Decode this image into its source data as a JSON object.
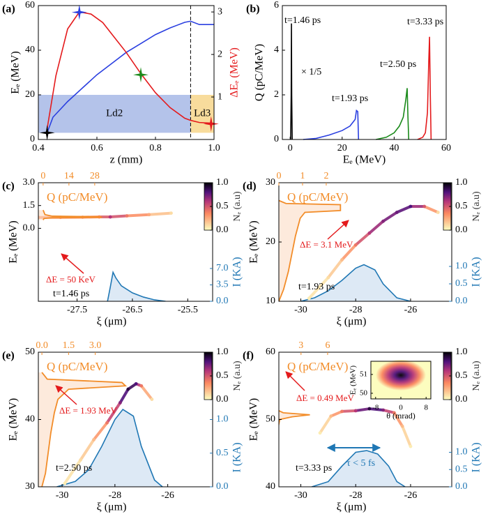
{
  "chart_data": [
    {
      "type": "line",
      "panel": "(a)",
      "xlabel": "z (mm)",
      "ylabel": "Eₑ (MeV)",
      "y2label": "ΔEₑ (MeV)",
      "xlim": [
        0.4,
        1.0
      ],
      "xticks": [
        0.4,
        0.6,
        0.8,
        {
          "value": 1,
          "label": "1.0"
        }
      ],
      "ylim": [
        0,
        60
      ],
      "yticks": [
        0,
        20,
        40,
        60
      ],
      "y2lim": [
        0,
        3.15
      ],
      "y2ticks": [
        1,
        2,
        3
      ],
      "y2color": "#e41a1c",
      "regions": [
        {
          "label": "Ld2",
          "x": [
            0.4,
            0.92
          ],
          "y": [
            3,
            20
          ],
          "color": "#b4c3ea"
        },
        {
          "label": "Ld3",
          "x": [
            0.92,
            1.0
          ],
          "y": [
            3,
            20
          ],
          "color": "#f8dc9c"
        }
      ],
      "vline": 0.92,
      "series": [
        {
          "color": "#2a3fe0",
          "x": [
            0.43,
            0.45,
            0.5,
            0.55,
            0.6,
            0.65,
            0.7,
            0.75,
            0.8,
            0.85,
            0.9,
            0.92,
            0.95,
            1.0
          ],
          "values": [
            3,
            10,
            17,
            23,
            29,
            34,
            39,
            43,
            47,
            50,
            52.5,
            53,
            51.5,
            51.5
          ]
        },
        {
          "color": "#e41a1c",
          "axis": "y2",
          "x": [
            0.43,
            0.46,
            0.5,
            0.54,
            0.58,
            0.62,
            0.66,
            0.7,
            0.75,
            0.8,
            0.85,
            0.9,
            0.92,
            0.95,
            1.0
          ],
          "values": [
            0.25,
            1.5,
            2.6,
            3.0,
            2.95,
            2.75,
            2.4,
            2.05,
            1.55,
            1.1,
            0.75,
            0.5,
            0.45,
            0.4,
            0.38
          ]
        }
      ],
      "markers": {
        "x": [
          0.43,
          0.54,
          0.75,
          0.99
        ],
        "values": [
          3,
          57,
          29,
          7
        ],
        "colors": [
          "#000000",
          "#2a3fe0",
          "#1a8a1a",
          "#e41a1c"
        ]
      }
    },
    {
      "type": "line",
      "panel": "(b)",
      "xlabel": "Eₑ (MeV)",
      "ylabel": "Q (pC/MeV)",
      "xlim": [
        -3,
        60
      ],
      "xticks": [
        0,
        20,
        40,
        60
      ],
      "ylim": [
        0,
        6
      ],
      "yticks": [
        0,
        2,
        4,
        6
      ],
      "series": [
        {
          "color": "#000000",
          "x": [
            0.2,
            0.4,
            0.5,
            0.6,
            0.8
          ],
          "values": [
            0,
            2,
            5.2,
            2,
            0
          ]
        },
        {
          "color": "#2a3fe0",
          "x": [
            5,
            10,
            15,
            20,
            23,
            25,
            25.5,
            26,
            26.3
          ],
          "values": [
            0,
            0.05,
            0.2,
            0.4,
            0.6,
            0.9,
            1.3,
            1.25,
            0
          ]
        },
        {
          "color": "#1a8a1a",
          "x": [
            33,
            37,
            40,
            42,
            43.5,
            44.5,
            45,
            45.3,
            45.6
          ],
          "values": [
            0,
            0.1,
            0.3,
            0.6,
            1.0,
            1.8,
            2.3,
            1.0,
            0
          ]
        },
        {
          "color": "#e41a1c",
          "x": [
            49,
            51,
            52,
            52.8,
            53.3,
            53.6,
            53.9,
            54.2
          ],
          "values": [
            0,
            0.1,
            0.3,
            1.2,
            3.5,
            4.6,
            2,
            0
          ]
        }
      ],
      "annotations": [
        "t=1.46 ps",
        "× 1/5",
        "t=1.93 ps",
        "t=2.50 ps",
        "t=3.33 ps"
      ]
    },
    {
      "type": "phasespace",
      "panel": "(c)",
      "xlabel": "ξ (μm)",
      "ylabel": "Eₑ (MeV)",
      "qlabel": "Q (pC/MeV)",
      "ilabel": "I (KA)",
      "clabel": "Nₑ (a.u)",
      "xlim": [
        -28.2,
        -25.05
      ],
      "xticks": [
        -27.5,
        -26.5,
        -25.5
      ],
      "ylim": [
        -4.8,
        3
      ],
      "yticks": [
        {
          "value": 0,
          "label": "0.0"
        },
        1.5,
        {
          "value": 3,
          "label": "3.0"
        }
      ],
      "y2lim": [
        0,
        25.3
      ],
      "y2ticks": [
        {
          "value": 0,
          "label": "0.0"
        },
        3.5,
        {
          "value": 7,
          "label": "7.0"
        }
      ],
      "qlim": [
        -2.6,
        92
      ],
      "qticks": [
        0,
        14,
        28
      ],
      "clim": [
        0,
        1
      ],
      "cticks": [
        {
          "value": 0,
          "label": "0.0"
        },
        0.5,
        {
          "value": 1,
          "label": "1.0"
        }
      ],
      "phase": {
        "x": [
          -28.2,
          -27.8,
          -27.4,
          -27.1,
          -26.9,
          -26.6,
          -26.2,
          -25.8
        ],
        "values": [
          0.72,
          0.72,
          0.73,
          0.75,
          0.75,
          0.82,
          0.9,
          1.0
        ],
        "density": [
          0.3,
          0.3,
          0.3,
          0.35,
          0.6,
          0.4,
          0.25,
          0.1
        ]
      },
      "spectrum": {
        "energy": [
          0.55,
          0.65,
          0.7,
          0.73,
          0.76,
          0.8,
          0.9,
          1.2
        ],
        "values": [
          0,
          0.5,
          5,
          32,
          30,
          5,
          1,
          0
        ]
      },
      "current": {
        "x": [
          -26.95,
          -26.9,
          -26.85,
          -26.8,
          -26.7,
          -26.5,
          -26.3,
          -26.1,
          -25.9
        ],
        "values": [
          0,
          3,
          6.2,
          5,
          3.3,
          1.8,
          0.9,
          0.3,
          0
        ]
      },
      "annotations": [
        "ΔE = 50 KeV",
        "t=1.46 ps"
      ]
    },
    {
      "type": "phasespace",
      "panel": "(d)",
      "xlabel": "ξ (μm)",
      "ylabel": "Eₑ (MeV)",
      "qlabel": "Q (pC/MeV)",
      "ilabel": "I (KA)",
      "clabel": "Nₑ (a.u)",
      "xlim": [
        -30.8,
        -24.5
      ],
      "xticks": [
        -30,
        -28,
        -26
      ],
      "ylim": [
        10,
        30
      ],
      "yticks": [
        10,
        20,
        30
      ],
      "y2lim": [
        0,
        3.4
      ],
      "y2ticks": [
        {
          "value": 0,
          "label": "0.0"
        },
        0.5,
        {
          "value": 1,
          "label": "1.0"
        }
      ],
      "qlim": [
        0,
        7.3
      ],
      "qticks": [
        0,
        1,
        2
      ],
      "clim": [
        0,
        1
      ],
      "cticks": [
        {
          "value": 0,
          "label": "0.0"
        },
        0.5,
        {
          "value": 1,
          "label": "1.0"
        }
      ],
      "phase": {
        "x": [
          -29.7,
          -29.0,
          -28.5,
          -28.0,
          -27.5,
          -27.0,
          -26.5,
          -26.0,
          -25.5,
          -25.0
        ],
        "values": [
          10.5,
          14,
          17,
          19.5,
          21.5,
          23.5,
          25,
          26,
          26,
          25
        ],
        "density": [
          0.05,
          0.1,
          0.2,
          0.4,
          0.6,
          0.7,
          0.75,
          0.8,
          0.5,
          0.1
        ]
      },
      "spectrum": {
        "energy": [
          10,
          12,
          15,
          18,
          21,
          24,
          25,
          25.3,
          25.5,
          26.3,
          26.5,
          27
        ],
        "values": [
          0,
          0.2,
          0.4,
          0.55,
          0.7,
          0.9,
          1.1,
          2.6,
          2.6,
          2.6,
          0.3,
          0
        ]
      },
      "current": {
        "x": [
          -30,
          -29.5,
          -29,
          -28.5,
          -28,
          -27.7,
          -27.3,
          -27,
          -26.5,
          -26
        ],
        "values": [
          0,
          0.1,
          0.3,
          0.6,
          0.95,
          1.05,
          0.9,
          0.5,
          0.1,
          0
        ]
      },
      "annotations": [
        "ΔE = 3.1 MeV",
        "t=1.93 ps"
      ]
    },
    {
      "type": "phasespace",
      "panel": "(e)",
      "xlabel": "ξ (μm)",
      "ylabel": "Eₑ (MeV)",
      "qlabel": "Q (pC/MeV)",
      "ilabel": "I (KA)",
      "clabel": "Nₑ (a.u)",
      "xlim": [
        -30.9,
        -24.3
      ],
      "xticks": [
        -30,
        -28,
        -26
      ],
      "ylim": [
        30,
        50
      ],
      "yticks": [
        30,
        40,
        50
      ],
      "y2lim": [
        0,
        2.0
      ],
      "y2ticks": [
        {
          "value": 0,
          "label": "0.0"
        },
        0.5,
        {
          "value": 1,
          "label": "1.0"
        }
      ],
      "qlim": [
        -0.2,
        9.6
      ],
      "qticks": [
        {
          "value": 0,
          "label": "0.0"
        },
        1.5,
        {
          "value": 3,
          "label": "3.0"
        }
      ],
      "clim": [
        0,
        1
      ],
      "cticks": [
        {
          "value": 0,
          "label": "0.0"
        },
        0.5,
        {
          "value": 1,
          "label": "1.0"
        }
      ],
      "phase": {
        "x": [
          -29.9,
          -29.3,
          -28.8,
          -28.3,
          -27.8,
          -27.5,
          -27.2,
          -27.0,
          -26.6
        ],
        "values": [
          30.5,
          34,
          37,
          39.5,
          42.5,
          44.5,
          45.3,
          45,
          43
        ],
        "density": [
          0.05,
          0.1,
          0.2,
          0.4,
          0.7,
          0.9,
          0.8,
          0.4,
          0.1
        ]
      },
      "spectrum": {
        "energy": [
          30,
          32,
          35,
          38,
          41,
          43,
          44.5,
          45,
          45.5,
          46,
          47
        ],
        "values": [
          0,
          0.2,
          0.35,
          0.5,
          0.7,
          0.9,
          1.5,
          4.7,
          4.5,
          0.3,
          0
        ]
      },
      "current": {
        "x": [
          -30.2,
          -29.5,
          -29,
          -28.5,
          -28,
          -27.7,
          -27.3,
          -27,
          -26.5,
          -26.2
        ],
        "values": [
          0,
          0.08,
          0.25,
          0.6,
          1.0,
          1.15,
          1.05,
          0.6,
          0.1,
          0
        ]
      },
      "annotations": [
        "ΔE = 1.93 MeV",
        "t=2.50 ps"
      ]
    },
    {
      "type": "phasespace",
      "panel": "(f)",
      "xlabel": "ξ (μm)",
      "ylabel": "Eₑ (MeV)",
      "qlabel": "Q (pC/MeV)",
      "ilabel": "I (KA)",
      "clabel": "Nₑ (a.u)",
      "xlim": [
        -30.8,
        -24.5
      ],
      "xticks": [
        -30,
        -28,
        -26
      ],
      "ylim": [
        40,
        60
      ],
      "yticks": [
        40,
        50,
        60
      ],
      "y2lim": [
        0,
        3.9
      ],
      "y2ticks": [
        {
          "value": 0,
          "label": "0.0"
        },
        0.5,
        {
          "value": 1,
          "label": "1.0"
        }
      ],
      "qlim": [
        0.5,
        20
      ],
      "qticks": [
        3,
        6
      ],
      "clim": [
        0,
        1
      ],
      "cticks": [
        {
          "value": 0,
          "label": "0.0"
        },
        0.5,
        {
          "value": 1,
          "label": "1.0"
        }
      ],
      "phase": {
        "x": [
          -29.3,
          -28.9,
          -28.5,
          -28,
          -27.5,
          -27,
          -26.6,
          -26.3,
          -26
        ],
        "values": [
          48,
          50.5,
          51.2,
          51.3,
          51.6,
          51.4,
          51,
          49,
          46
        ],
        "density": [
          0.05,
          0.2,
          0.4,
          0.6,
          0.9,
          0.7,
          0.4,
          0.2,
          0.05
        ]
      },
      "spectrum": {
        "energy": [
          40,
          44,
          48,
          50,
          50.4,
          50.7,
          51,
          51.5,
          52
        ],
        "values": [
          0,
          0.1,
          0.3,
          0.6,
          2,
          4,
          1,
          0.2,
          0
        ]
      },
      "current": {
        "x": [
          -29.6,
          -29,
          -28.5,
          -28,
          -27.6,
          -27.2,
          -26.8,
          -26.5,
          -26.2
        ],
        "values": [
          0,
          0.15,
          0.6,
          1.0,
          1.05,
          0.95,
          0.6,
          0.15,
          0
        ]
      },
      "annotations": [
        "ΔE = 0.49 MeV",
        "t=3.33 ps",
        "τ < 5 fs"
      ],
      "inset": {
        "xlabel": "θ (mrad)",
        "ylabel": "Eₑ (MeV)",
        "xlim": [
          -9.5,
          9.5
        ],
        "xticks": [
          -8,
          0,
          8
        ],
        "ylim": [
          49.7,
          51.7
        ],
        "yticks": [
          50,
          51
        ]
      }
    }
  ]
}
